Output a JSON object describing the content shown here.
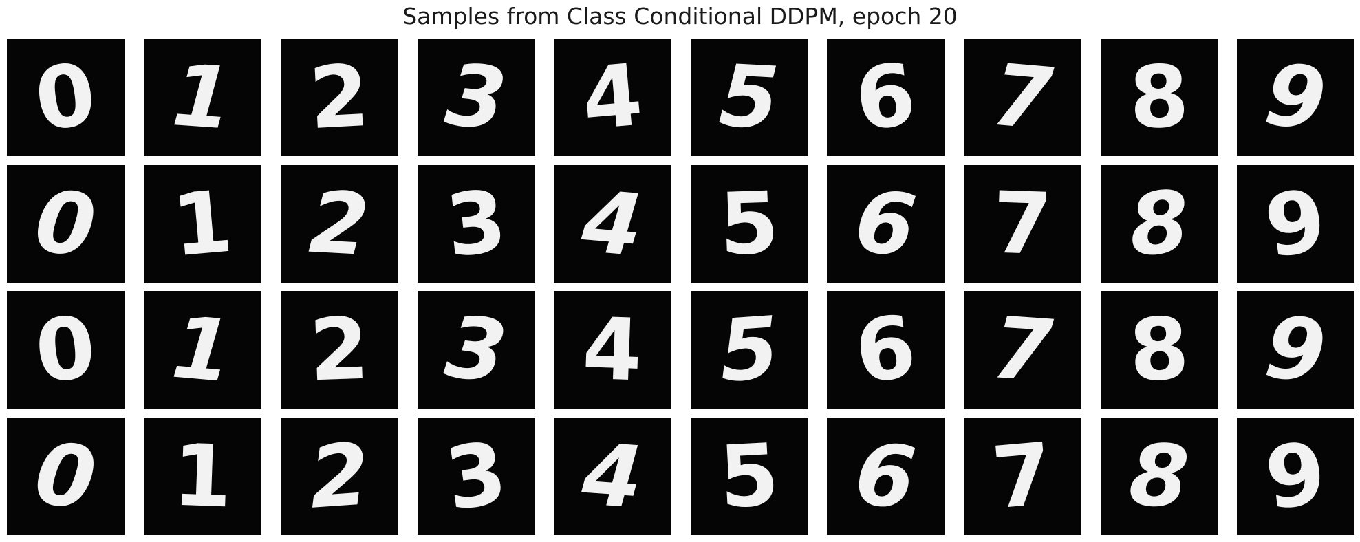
{
  "title": "Samples from Class Conditional DDPM, epoch 20",
  "grid": {
    "rows": 4,
    "columns": 10,
    "background": "#ffffff",
    "tile_background": "#050505",
    "digit_color": "#f2f2f2",
    "samples": [
      [
        "0",
        "1",
        "2",
        "3",
        "4",
        "5",
        "6",
        "7",
        "8",
        "9"
      ],
      [
        "0",
        "1",
        "2",
        "3",
        "4",
        "5",
        "6",
        "7",
        "8",
        "9"
      ],
      [
        "0",
        "1",
        "2",
        "3",
        "4",
        "5",
        "6",
        "7",
        "8",
        "9"
      ],
      [
        "0",
        "1",
        "2",
        "3",
        "4",
        "5",
        "6",
        "7",
        "8",
        "9"
      ]
    ]
  }
}
